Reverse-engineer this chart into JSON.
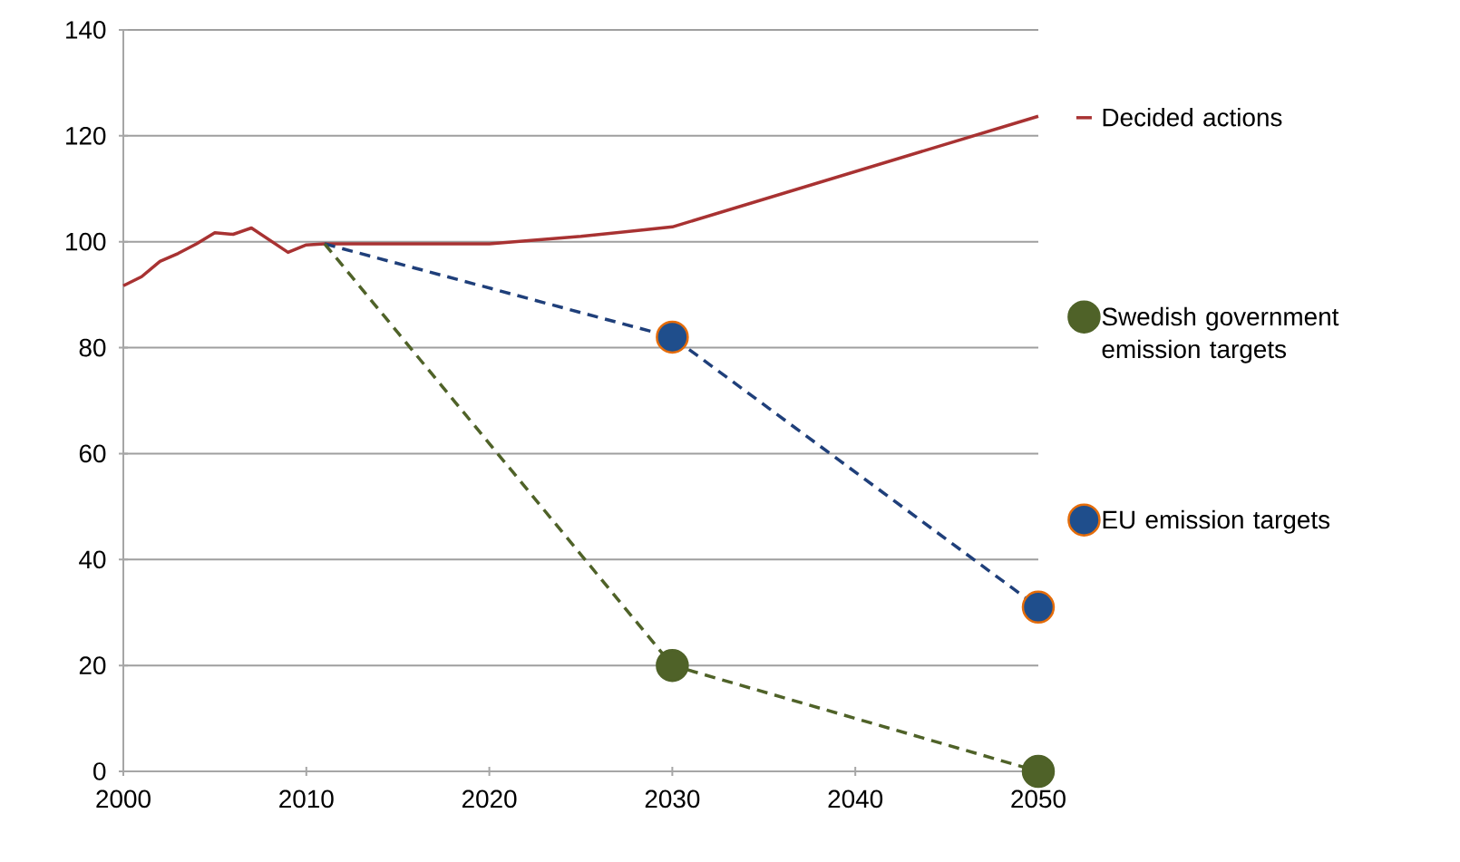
{
  "chart_data": {
    "type": "line",
    "xlim": [
      2000,
      2050
    ],
    "ylim": [
      0,
      140
    ],
    "xticks": [
      2000,
      2010,
      2020,
      2030,
      2040,
      2050
    ],
    "yticks": [
      0,
      20,
      40,
      60,
      80,
      100,
      120,
      140
    ],
    "grid": "y",
    "legend": "right",
    "series": [
      {
        "name": "Decided actions",
        "color": "#a83232",
        "line_style": "solid",
        "marker": "none",
        "x": [
          2000,
          2001,
          2002,
          2003,
          2004,
          2005,
          2006,
          2007,
          2008,
          2009,
          2010,
          2011,
          2020,
          2025,
          2030,
          2050
        ],
        "values": [
          91.7,
          93.4,
          96.3,
          97.8,
          99.6,
          101.7,
          101.4,
          102.6,
          100.3,
          98,
          99.4,
          99.6,
          99.6,
          101,
          102.8,
          123.7
        ]
      },
      {
        "type": "line",
        "color": "#1f3f7a",
        "line_style": "dashed",
        "marker": "none",
        "x": [
          2011,
          2030,
          2050
        ],
        "values": [
          99.6,
          82,
          31
        ]
      },
      {
        "type": "line",
        "color": "#4f6228",
        "line_style": "dashed",
        "marker": "none",
        "x": [
          2011,
          2030,
          2050
        ],
        "values": [
          99.6,
          20,
          0
        ]
      },
      {
        "name": "Swedish government emission targets",
        "type": "scatter",
        "color": "#4f6228",
        "marker": "circle",
        "x": [
          2030,
          2050
        ],
        "values": [
          20,
          0
        ]
      },
      {
        "name": "EU emission targets",
        "type": "scatter",
        "color": "#1f4e8c",
        "marker": "circle",
        "x": [
          2030,
          2050
        ],
        "values": [
          82,
          31
        ]
      }
    ]
  }
}
